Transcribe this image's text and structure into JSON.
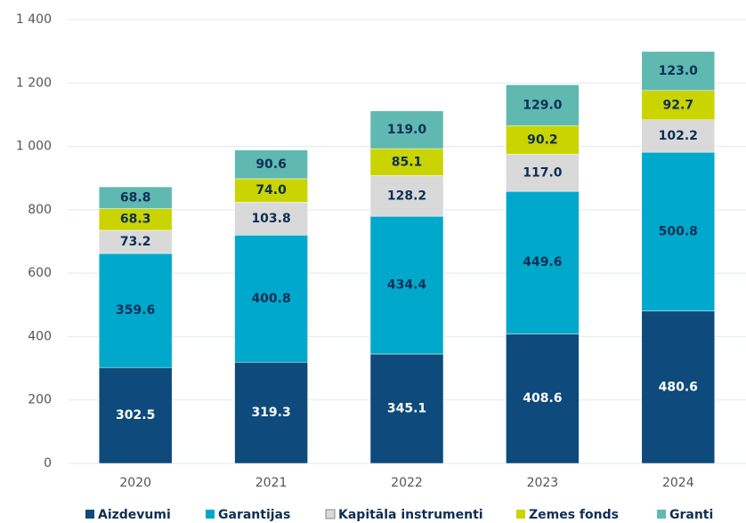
{
  "chart_data": {
    "type": "stacked_bar",
    "categories": [
      "2020",
      "2021",
      "2022",
      "2023",
      "2024"
    ],
    "series": [
      {
        "name": "Aizdevumi",
        "color": "#0e4a7b",
        "values": [
          302.5,
          319.3,
          345.1,
          408.6,
          480.6
        ],
        "value_labels": [
          "302.5",
          "319.3",
          "345.1",
          "408.6",
          "480.6"
        ]
      },
      {
        "name": "Garantijas",
        "color": "#00a9cc",
        "values": [
          359.6,
          400.8,
          434.4,
          449.6,
          500.8
        ],
        "value_labels": [
          "359.6",
          "400.8",
          "434.4",
          "449.6",
          "500.8"
        ]
      },
      {
        "name": "Kapitāla instrumenti",
        "color": "#d9d9d9",
        "values": [
          73.2,
          103.8,
          128.2,
          117.0,
          102.2
        ],
        "value_labels": [
          "73.2",
          "103.8",
          "128.2",
          "117.0",
          "102.2"
        ]
      },
      {
        "name": "Zemes fonds",
        "color": "#c9d400",
        "values": [
          68.3,
          74.0,
          85.1,
          90.2,
          92.7
        ],
        "value_labels": [
          "68.3",
          "74.0",
          "85.1",
          "90.2",
          "92.7"
        ]
      },
      {
        "name": "Granti",
        "color": "#5fb9b1",
        "values": [
          68.8,
          90.6,
          119.0,
          129.0,
          123.0
        ],
        "value_labels": [
          "68.8",
          "90.6",
          "119.0",
          "129.0",
          "123.0"
        ]
      }
    ],
    "ylim": [
      0,
      1400
    ],
    "yticks": [
      0,
      200,
      400,
      600,
      800,
      {
        "value": 1000,
        "label": "1 000"
      },
      {
        "value": 1200,
        "label": "1 200"
      },
      {
        "value": 1400,
        "label": "1 400"
      }
    ],
    "grid": true,
    "legend": "bottom"
  }
}
